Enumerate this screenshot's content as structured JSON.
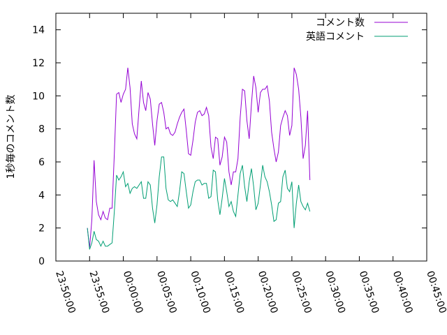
{
  "chart_data": {
    "type": "line",
    "title": "",
    "xlabel": "",
    "ylabel": "1秒毎のコメント数",
    "xlim": [
      "23:50:00",
      "00:45:00"
    ],
    "ylim": [
      0,
      15
    ],
    "x_ticks": [
      "23:50:00",
      "23:55:00",
      "00:00:00",
      "00:05:00",
      "00:10:00",
      "00:15:00",
      "00:20:00",
      "00:25:00",
      "00:30:00",
      "00:35:00",
      "00:40:00",
      "00:45:00"
    ],
    "y_ticks": [
      "0",
      "2",
      "4",
      "6",
      "8",
      "10",
      "12",
      "14"
    ],
    "grid": false,
    "legend_position": "top-right",
    "series": [
      {
        "name": "コメント数",
        "color": "#9400d3",
        "points": [
          [
            "23:54:40",
            2.0
          ],
          [
            "23:55:00",
            0.8
          ],
          [
            "23:55:20",
            2.5
          ],
          [
            "23:55:40",
            6.1
          ],
          [
            "23:56:00",
            3.6
          ],
          [
            "23:56:20",
            2.8
          ],
          [
            "23:56:40",
            2.5
          ],
          [
            "23:57:00",
            3.0
          ],
          [
            "23:57:20",
            2.6
          ],
          [
            "23:57:40",
            2.5
          ],
          [
            "23:58:00",
            3.2
          ],
          [
            "23:58:20",
            3.2
          ],
          [
            "23:58:40",
            6.5
          ],
          [
            "23:59:00",
            10.1
          ],
          [
            "23:59:20",
            10.2
          ],
          [
            "23:59:40",
            9.6
          ],
          [
            "00:00:00",
            10.1
          ],
          [
            "00:00:20",
            10.4
          ],
          [
            "00:00:40",
            11.7
          ],
          [
            "00:01:00",
            10.5
          ],
          [
            "00:01:20",
            8.3
          ],
          [
            "00:01:40",
            7.7
          ],
          [
            "00:02:00",
            7.4
          ],
          [
            "00:02:20",
            9.2
          ],
          [
            "00:02:40",
            10.9
          ],
          [
            "00:03:00",
            9.6
          ],
          [
            "00:03:20",
            9.1
          ],
          [
            "00:03:40",
            10.2
          ],
          [
            "00:04:00",
            9.8
          ],
          [
            "00:04:20",
            8.3
          ],
          [
            "00:04:40",
            7.0
          ],
          [
            "00:05:00",
            8.5
          ],
          [
            "00:05:20",
            9.5
          ],
          [
            "00:05:40",
            9.6
          ],
          [
            "00:06:00",
            9.0
          ],
          [
            "00:06:20",
            8.0
          ],
          [
            "00:06:40",
            8.1
          ],
          [
            "00:07:00",
            7.7
          ],
          [
            "00:07:20",
            7.6
          ],
          [
            "00:07:40",
            7.8
          ],
          [
            "00:08:00",
            8.3
          ],
          [
            "00:08:20",
            8.7
          ],
          [
            "00:08:40",
            9.0
          ],
          [
            "00:09:00",
            9.2
          ],
          [
            "00:09:20",
            7.9
          ],
          [
            "00:09:40",
            6.5
          ],
          [
            "00:10:00",
            6.4
          ],
          [
            "00:10:20",
            7.3
          ],
          [
            "00:10:40",
            8.4
          ],
          [
            "00:11:00",
            9.0
          ],
          [
            "00:11:20",
            9.1
          ],
          [
            "00:11:40",
            8.8
          ],
          [
            "00:12:00",
            8.9
          ],
          [
            "00:12:20",
            9.3
          ],
          [
            "00:12:40",
            8.8
          ],
          [
            "00:13:00",
            6.9
          ],
          [
            "00:13:20",
            6.2
          ],
          [
            "00:13:40",
            7.5
          ],
          [
            "00:14:00",
            7.4
          ],
          [
            "00:14:20",
            5.8
          ],
          [
            "00:14:40",
            6.3
          ],
          [
            "00:15:00",
            7.5
          ],
          [
            "00:15:20",
            7.2
          ],
          [
            "00:15:40",
            5.4
          ],
          [
            "00:16:00",
            4.6
          ],
          [
            "00:16:20",
            5.4
          ],
          [
            "00:16:40",
            5.4
          ],
          [
            "00:17:00",
            6.2
          ],
          [
            "00:17:20",
            8.7
          ],
          [
            "00:17:40",
            10.4
          ],
          [
            "00:18:00",
            10.3
          ],
          [
            "00:18:20",
            8.5
          ],
          [
            "00:18:40",
            7.4
          ],
          [
            "00:19:00",
            9.5
          ],
          [
            "00:19:20",
            11.2
          ],
          [
            "00:19:40",
            10.5
          ],
          [
            "00:20:00",
            9.0
          ],
          [
            "00:20:20",
            10.2
          ],
          [
            "00:20:40",
            10.4
          ],
          [
            "00:21:00",
            10.4
          ],
          [
            "00:21:20",
            10.6
          ],
          [
            "00:21:40",
            9.7
          ],
          [
            "00:22:00",
            7.8
          ],
          [
            "00:22:20",
            6.8
          ],
          [
            "00:22:40",
            6.0
          ],
          [
            "00:23:00",
            6.6
          ],
          [
            "00:23:20",
            8.2
          ],
          [
            "00:23:40",
            8.7
          ],
          [
            "00:24:00",
            9.1
          ],
          [
            "00:24:20",
            8.8
          ],
          [
            "00:24:40",
            7.6
          ],
          [
            "00:25:00",
            8.2
          ],
          [
            "00:25:20",
            11.7
          ],
          [
            "00:25:40",
            11.3
          ],
          [
            "00:26:00",
            10.4
          ],
          [
            "00:26:20",
            8.7
          ],
          [
            "00:26:40",
            6.2
          ],
          [
            "00:27:00",
            7.0
          ],
          [
            "00:27:20",
            9.1
          ],
          [
            "00:27:40",
            4.9
          ]
        ]
      },
      {
        "name": "英語コメント",
        "color": "#009e73",
        "points": [
          [
            "23:54:40",
            2.0
          ],
          [
            "23:55:00",
            0.7
          ],
          [
            "23:55:20",
            1.1
          ],
          [
            "23:55:40",
            1.8
          ],
          [
            "23:56:00",
            1.3
          ],
          [
            "23:56:20",
            1.2
          ],
          [
            "23:56:40",
            0.9
          ],
          [
            "23:57:00",
            1.2
          ],
          [
            "23:57:20",
            0.9
          ],
          [
            "23:57:40",
            0.9
          ],
          [
            "23:58:00",
            1.0
          ],
          [
            "23:58:20",
            1.1
          ],
          [
            "23:58:40",
            3.0
          ],
          [
            "23:59:00",
            5.2
          ],
          [
            "23:59:20",
            4.9
          ],
          [
            "23:59:40",
            5.1
          ],
          [
            "00:00:00",
            5.4
          ],
          [
            "00:00:20",
            4.5
          ],
          [
            "00:00:40",
            4.7
          ],
          [
            "00:01:00",
            4.1
          ],
          [
            "00:01:20",
            4.4
          ],
          [
            "00:01:40",
            4.5
          ],
          [
            "00:02:00",
            4.4
          ],
          [
            "00:02:20",
            4.6
          ],
          [
            "00:02:40",
            4.8
          ],
          [
            "00:03:00",
            3.8
          ],
          [
            "00:03:20",
            3.8
          ],
          [
            "00:03:40",
            4.8
          ],
          [
            "00:04:00",
            4.6
          ],
          [
            "00:04:20",
            3.2
          ],
          [
            "00:04:40",
            2.3
          ],
          [
            "00:05:00",
            3.4
          ],
          [
            "00:05:20",
            5.1
          ],
          [
            "00:05:40",
            6.3
          ],
          [
            "00:06:00",
            6.3
          ],
          [
            "00:06:20",
            4.4
          ],
          [
            "00:06:40",
            3.7
          ],
          [
            "00:07:00",
            3.6
          ],
          [
            "00:07:20",
            3.7
          ],
          [
            "00:07:40",
            3.5
          ],
          [
            "00:08:00",
            3.3
          ],
          [
            "00:08:20",
            4.2
          ],
          [
            "00:08:40",
            5.4
          ],
          [
            "00:09:00",
            5.3
          ],
          [
            "00:09:20",
            4.2
          ],
          [
            "00:09:40",
            3.2
          ],
          [
            "00:10:00",
            3.4
          ],
          [
            "00:10:20",
            4.2
          ],
          [
            "00:10:40",
            4.8
          ],
          [
            "00:11:00",
            4.9
          ],
          [
            "00:11:20",
            4.9
          ],
          [
            "00:11:40",
            4.6
          ],
          [
            "00:12:00",
            4.7
          ],
          [
            "00:12:20",
            4.7
          ],
          [
            "00:12:40",
            3.8
          ],
          [
            "00:13:00",
            3.9
          ],
          [
            "00:13:20",
            5.5
          ],
          [
            "00:13:40",
            5.4
          ],
          [
            "00:14:00",
            3.7
          ],
          [
            "00:14:20",
            2.8
          ],
          [
            "00:14:40",
            3.8
          ],
          [
            "00:15:00",
            5.0
          ],
          [
            "00:15:20",
            4.2
          ],
          [
            "00:15:40",
            3.3
          ],
          [
            "00:16:00",
            3.6
          ],
          [
            "00:16:20",
            3.0
          ],
          [
            "00:16:40",
            2.7
          ],
          [
            "00:17:00",
            4.0
          ],
          [
            "00:17:20",
            5.3
          ],
          [
            "00:17:40",
            5.8
          ],
          [
            "00:18:00",
            4.5
          ],
          [
            "00:18:20",
            3.6
          ],
          [
            "00:18:40",
            4.8
          ],
          [
            "00:19:00",
            5.6
          ],
          [
            "00:19:20",
            4.5
          ],
          [
            "00:19:40",
            3.1
          ],
          [
            "00:20:00",
            3.5
          ],
          [
            "00:20:20",
            4.6
          ],
          [
            "00:20:40",
            5.8
          ],
          [
            "00:21:00",
            5.1
          ],
          [
            "00:21:20",
            4.8
          ],
          [
            "00:21:40",
            4.2
          ],
          [
            "00:22:00",
            3.4
          ],
          [
            "00:22:20",
            2.4
          ],
          [
            "00:22:40",
            2.5
          ],
          [
            "00:23:00",
            3.5
          ],
          [
            "00:23:20",
            3.6
          ],
          [
            "00:23:40",
            5.1
          ],
          [
            "00:24:00",
            5.5
          ],
          [
            "00:24:20",
            4.4
          ],
          [
            "00:24:40",
            4.2
          ],
          [
            "00:25:00",
            4.8
          ],
          [
            "00:25:20",
            2.0
          ],
          [
            "00:25:40",
            3.5
          ],
          [
            "00:26:00",
            4.6
          ],
          [
            "00:26:20",
            3.6
          ],
          [
            "00:26:40",
            3.3
          ],
          [
            "00:27:00",
            3.1
          ],
          [
            "00:27:20",
            3.5
          ],
          [
            "00:27:40",
            3.0
          ]
        ]
      }
    ]
  }
}
